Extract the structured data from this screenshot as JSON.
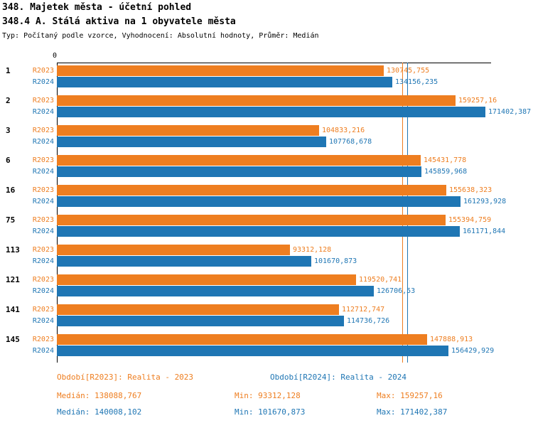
{
  "header": {
    "title_line1": "348. Majetek města - účetní pohled",
    "title_line2": "348.4 A. Stálá aktiva na 1 obyvatele města",
    "meta": "Typ: Počítaný podle vzorce, Vyhodnocení: Absolutní hodnoty, Průměr: Medián"
  },
  "chart_data": {
    "type": "bar",
    "orientation": "horizontal",
    "title": "348.4 A. Stálá aktiva na 1 obyvatele města",
    "categories": [
      "1",
      "2",
      "3",
      "6",
      "16",
      "75",
      "113",
      "121",
      "141",
      "145"
    ],
    "series": [
      {
        "name": "R2023",
        "color": "#EE7E20",
        "values": [
          130745.755,
          159257.16,
          104833.216,
          145431.778,
          155638.323,
          155394.759,
          93312.128,
          119520.741,
          112712.747,
          147888.913
        ],
        "median": 138088.767,
        "min": 93312.128,
        "max": 159257.16
      },
      {
        "name": "R2024",
        "color": "#1F76B4",
        "values": [
          134156.235,
          171402.387,
          107768.678,
          145859.968,
          161293.928,
          161171.844,
          101670.873,
          126706.53,
          114736.726,
          156429.929
        ],
        "median": 140008.102,
        "min": 101670.873,
        "max": 171402.387
      }
    ],
    "labels": {
      "R2023": [
        "130745,755",
        "159257,16",
        "104833,216",
        "145431,778",
        "155638,323",
        "155394,759",
        "93312,128",
        "119520,741",
        "112712,747",
        "147888,913"
      ],
      "R2024": [
        "134156,235",
        "171402,387",
        "107768,678",
        "145859,968",
        "161293,928",
        "161171,844",
        "101670,873",
        "126706,53",
        "114736,726",
        "156429,929"
      ]
    },
    "axis": {
      "origin_label": "0",
      "x_min": 0,
      "x_max": 173300,
      "grid": false,
      "median_lines": true
    }
  },
  "footer": {
    "period_2023": "Období[R2023]: Realita - 2023",
    "period_2024": "Období[R2024]: Realita - 2024",
    "stats_2023": {
      "median": "Medián: 138088,767",
      "min": "Min: 93312,128",
      "max": "Max: 159257,16"
    },
    "stats_2024": {
      "median": "Medián: 140008,102",
      "min": "Min: 101670,873",
      "max": "Max: 171402,387"
    }
  }
}
